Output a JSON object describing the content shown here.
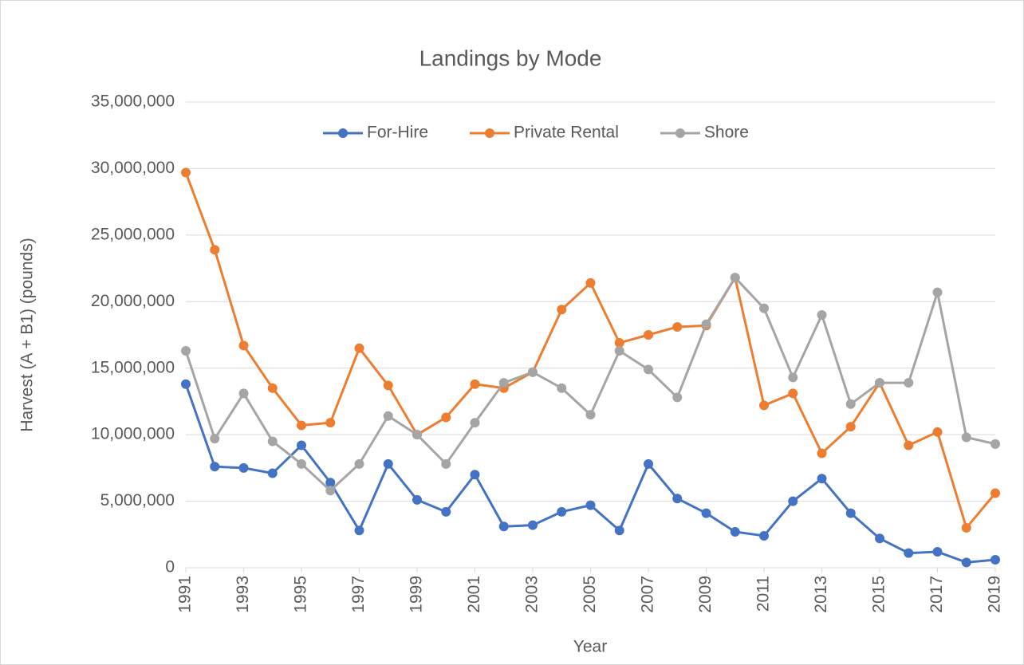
{
  "chart_data": {
    "type": "line",
    "title": "Landings by Mode",
    "x_label": "Year",
    "y_label": "Harvest (A + B1) (pounds)",
    "x": [
      1991,
      1992,
      1993,
      1994,
      1995,
      1996,
      1997,
      1998,
      1999,
      2000,
      2001,
      2002,
      2003,
      2004,
      2005,
      2006,
      2007,
      2008,
      2009,
      2010,
      2011,
      2012,
      2013,
      2014,
      2015,
      2016,
      2017,
      2018,
      2019
    ],
    "xlim": [
      1991,
      2019
    ],
    "xticks": [
      1991,
      1993,
      1995,
      1997,
      1999,
      2001,
      2003,
      2005,
      2007,
      2009,
      2011,
      2013,
      2015,
      2017,
      2019
    ],
    "ylim": [
      0,
      35000000
    ],
    "yticks": [
      0,
      {
        "value": 5000000,
        "label": "5,000,000"
      },
      {
        "value": 10000000,
        "label": "10,000,000"
      },
      {
        "value": 15000000,
        "label": "15,000,000"
      },
      {
        "value": 20000000,
        "label": "20,000,000"
      },
      {
        "value": 25000000,
        "label": "25,000,000"
      },
      {
        "value": 30000000,
        "label": "30,000,000"
      },
      {
        "value": 35000000,
        "label": "35,000,000"
      }
    ],
    "grid": true,
    "legend": "top",
    "series": [
      {
        "name": "For-Hire",
        "color": "#4472c4",
        "values": [
          13800000,
          7600000,
          7500000,
          7100000,
          9200000,
          6400000,
          2800000,
          7800000,
          5100000,
          4200000,
          7000000,
          3100000,
          3200000,
          4200000,
          4700000,
          2800000,
          7800000,
          5200000,
          4100000,
          2700000,
          2400000,
          5000000,
          6700000,
          4100000,
          2200000,
          1100000,
          1200000,
          400000,
          600000
        ]
      },
      {
        "name": "Private Rental",
        "color": "#ed7d31",
        "values": [
          29700000,
          23900000,
          16700000,
          13500000,
          10700000,
          10900000,
          16500000,
          13700000,
          10000000,
          11300000,
          13800000,
          13500000,
          14700000,
          19400000,
          21400000,
          16900000,
          17500000,
          18100000,
          18200000,
          21800000,
          12200000,
          13100000,
          8600000,
          10600000,
          13900000,
          9200000,
          10200000,
          3000000,
          5600000
        ]
      },
      {
        "name": "Shore",
        "color": "#a5a5a5",
        "values": [
          16300000,
          9700000,
          13100000,
          9500000,
          7800000,
          5800000,
          7800000,
          11400000,
          10000000,
          7800000,
          10900000,
          13900000,
          14700000,
          13500000,
          11500000,
          16300000,
          14900000,
          12800000,
          18300000,
          21800000,
          19500000,
          14300000,
          19000000,
          12300000,
          13900000,
          13900000,
          20700000,
          9800000,
          9300000
        ]
      }
    ]
  }
}
